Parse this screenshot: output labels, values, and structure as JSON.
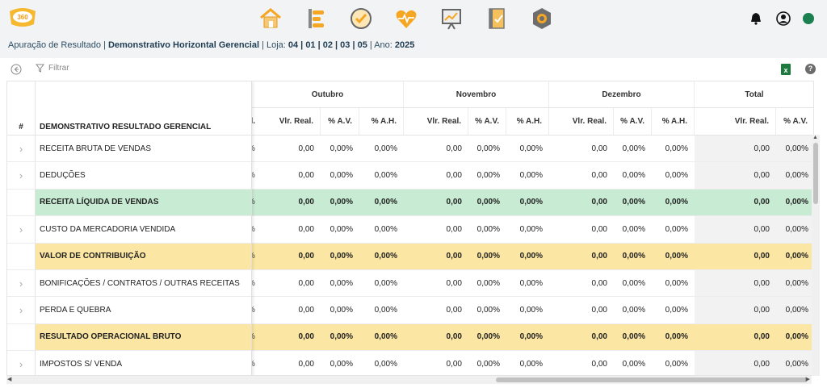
{
  "logo": {
    "text": "360"
  },
  "nav": {
    "icons": [
      "home-icon",
      "timeline-icon",
      "check-circle-icon",
      "heart-pulse-icon",
      "chart-board-icon",
      "notebook-icon",
      "settings-hex-icon"
    ]
  },
  "topright": {
    "bell": "bell-icon",
    "user": "user-icon",
    "status_color": "#1b7f4f"
  },
  "breadcrumb": {
    "prefix": "Apuração de Resultado | ",
    "report": "Demonstrativo Horizontal Gerencial",
    "loja_label": " | Loja: ",
    "loja_value": "04 | 01 | 02 | 03 | 05",
    "ano_label": " | Ano: ",
    "ano_value": "2025"
  },
  "toolbar": {
    "filter_label": "Filtrar"
  },
  "table": {
    "hash_header": "#",
    "title_header": "DEMONSTRATIVO RESULTADO GERENCIAL",
    "clipped_header": "l.",
    "months": [
      "Outubro",
      "Novembro",
      "Dezembro",
      "Total"
    ],
    "subcols": [
      "Vlr. Real.",
      "% A.V.",
      "% A.H."
    ],
    "total_subcols": [
      "Vlr. Real.",
      "% A.V."
    ],
    "rows": [
      {
        "label": "RECEITA BRUTA DE VENDAS",
        "expandable": true,
        "style": "normal",
        "clip": "%",
        "values": [
          "0,00",
          "0,00%",
          "0,00%",
          "0,00",
          "0,00%",
          "0,00%",
          "0,00",
          "0,00%",
          "0,00%",
          "0,00",
          "0,00%"
        ]
      },
      {
        "label": "DEDUÇÕES",
        "expandable": true,
        "style": "normal",
        "clip": "%",
        "values": [
          "0,00",
          "0,00%",
          "0,00%",
          "0,00",
          "0,00%",
          "0,00%",
          "0,00",
          "0,00%",
          "0,00%",
          "0,00",
          "0,00%"
        ]
      },
      {
        "label": "RECEITA LÍQUIDA DE VENDAS",
        "expandable": false,
        "style": "green",
        "clip": "%",
        "values": [
          "0,00",
          "0,00%",
          "0,00%",
          "0,00",
          "0,00%",
          "0,00%",
          "0,00",
          "0,00%",
          "0,00%",
          "0,00",
          "0,00%"
        ]
      },
      {
        "label": "CUSTO DA MERCADORIA VENDIDA",
        "expandable": true,
        "style": "normal",
        "clip": "%",
        "values": [
          "0,00",
          "0,00%",
          "0,00%",
          "0,00",
          "0,00%",
          "0,00%",
          "0,00",
          "0,00%",
          "0,00%",
          "0,00",
          "0,00%"
        ]
      },
      {
        "label": "VALOR DE CONTRIBUIÇÃO",
        "expandable": false,
        "style": "yellow",
        "clip": "%",
        "values": [
          "0,00",
          "0,00%",
          "0,00%",
          "0,00",
          "0,00%",
          "0,00%",
          "0,00",
          "0,00%",
          "0,00%",
          "0,00",
          "0,00%"
        ]
      },
      {
        "label": "BONIFICAÇÕES / CONTRATOS / OUTRAS RECEITAS",
        "expandable": true,
        "style": "normal",
        "clip": "%",
        "values": [
          "0,00",
          "0,00%",
          "0,00%",
          "0,00",
          "0,00%",
          "0,00%",
          "0,00",
          "0,00%",
          "0,00%",
          "0,00",
          "0,00%"
        ]
      },
      {
        "label": "PERDA E QUEBRA",
        "expandable": true,
        "style": "normal",
        "clip": "%",
        "values": [
          "0,00",
          "0,00%",
          "0,00%",
          "0,00",
          "0,00%",
          "0,00%",
          "0,00",
          "0,00%",
          "0,00%",
          "0,00",
          "0,00%"
        ]
      },
      {
        "label": "RESULTADO OPERACIONAL BRUTO",
        "expandable": false,
        "style": "yellow",
        "clip": "%",
        "values": [
          "0,00",
          "0,00%",
          "0,00%",
          "0,00",
          "0,00%",
          "0,00%",
          "0,00",
          "0,00%",
          "0,00%",
          "0,00",
          "0,00%"
        ]
      },
      {
        "label": "IMPOSTOS S/ VENDA",
        "expandable": true,
        "style": "normal",
        "clip": "%",
        "values": [
          "0,00",
          "0,00%",
          "0,00%",
          "0,00",
          "0,00%",
          "0,00%",
          "0,00",
          "0,00%",
          "0,00%",
          "0,00",
          "0,00%"
        ]
      }
    ]
  },
  "colors": {
    "green_row": "#c8ecd3",
    "yellow_row": "#fbe6a3",
    "excel": "#1d7a3e"
  }
}
